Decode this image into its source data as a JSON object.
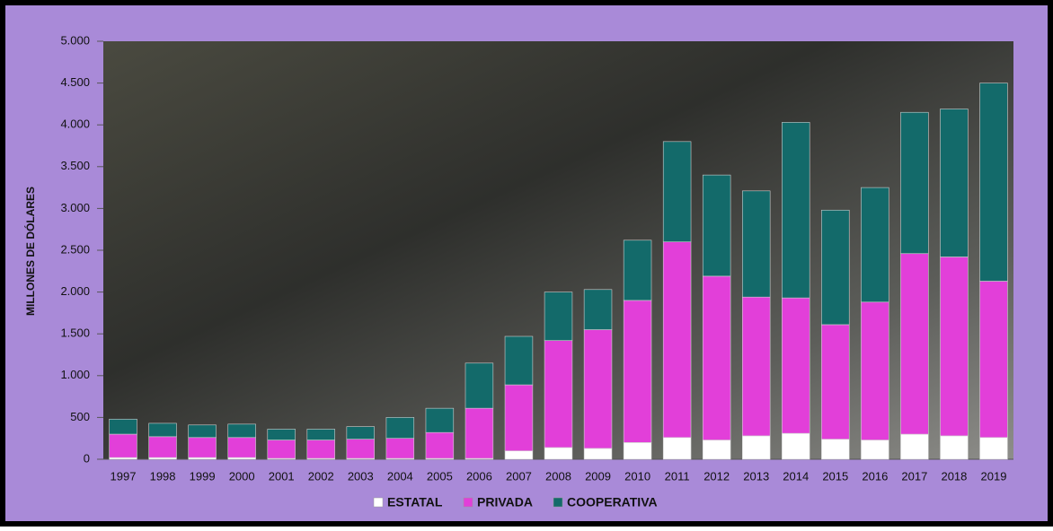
{
  "chart_data": {
    "type": "stacked_bar",
    "y_label": "MILLONES DE DÓLARES",
    "categories": [
      "1997",
      "1998",
      "1999",
      "2000",
      "2001",
      "2002",
      "2003",
      "2004",
      "2005",
      "2006",
      "2007",
      "2008",
      "2009",
      "2010",
      "2011",
      "2012",
      "2013",
      "2014",
      "2015",
      "2016",
      "2017",
      "2018",
      "2019"
    ],
    "series": [
      {
        "name": "ESTATAL",
        "color": "#ffffff",
        "values": [
          20,
          20,
          20,
          20,
          10,
          10,
          10,
          10,
          10,
          10,
          100,
          140,
          130,
          200,
          260,
          230,
          280,
          310,
          240,
          230,
          300,
          280,
          260
        ]
      },
      {
        "name": "PRIVADA",
        "color": "#e23fd9",
        "values": [
          280,
          250,
          240,
          240,
          220,
          220,
          230,
          240,
          310,
          600,
          790,
          1280,
          1420,
          1700,
          2340,
          1960,
          1660,
          1620,
          1370,
          1650,
          2160,
          2140,
          1870
        ]
      },
      {
        "name": "COOPERATIVA",
        "color": "#136a6a",
        "values": [
          180,
          160,
          150,
          160,
          130,
          130,
          150,
          250,
          290,
          540,
          580,
          580,
          480,
          720,
          1200,
          1210,
          1270,
          2100,
          1370,
          1370,
          1690,
          1770,
          2370
        ]
      }
    ],
    "ylim": [
      0,
      5000
    ],
    "yticks": [
      0,
      500,
      {
        "value": 1000,
        "label": "1.000"
      },
      {
        "value": 1500,
        "label": "1.500"
      },
      {
        "value": 2000,
        "label": "2.000"
      },
      {
        "value": 2500,
        "label": "2.500"
      },
      {
        "value": 3000,
        "label": "3.000"
      },
      {
        "value": 3500,
        "label": "3.500"
      },
      {
        "value": 4000,
        "label": "4.000"
      },
      {
        "value": 4500,
        "label": "4.500"
      },
      {
        "value": 5000,
        "label": "5.000"
      }
    ],
    "legend": "bottom"
  }
}
